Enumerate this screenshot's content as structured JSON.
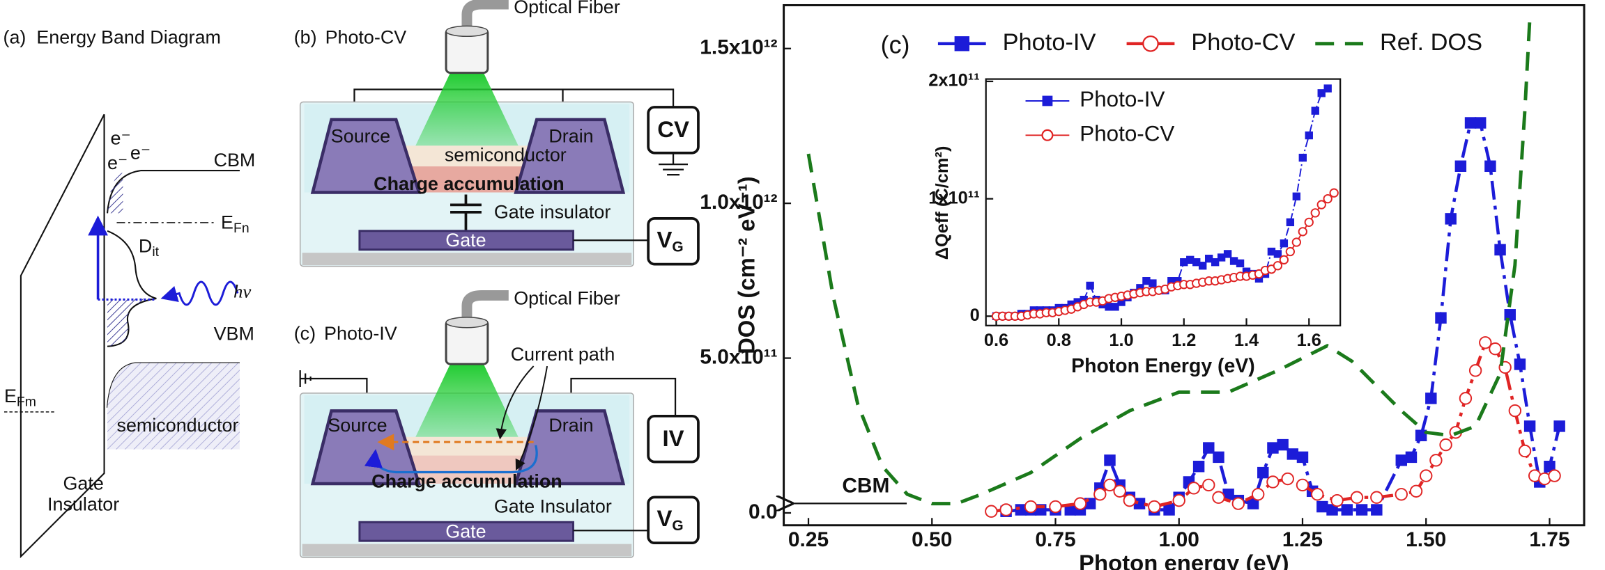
{
  "panel_a": {
    "label": "(a)",
    "title": "Energy Band Diagram",
    "electrons": [
      "e⁻",
      "e⁻",
      "e⁻"
    ],
    "cbm": "CBM",
    "efn": {
      "main": "E",
      "sub": "Fn"
    },
    "dit": {
      "main": "D",
      "sub": "it"
    },
    "photon": "hν",
    "vbm": "VBM",
    "efm": {
      "main": "E",
      "sub": "Fm"
    },
    "semiconductor": "semiconductor",
    "insulator": [
      "Gate",
      "Insulator"
    ]
  },
  "panel_b": {
    "label": "(b)",
    "title": "Photo-CV",
    "fiber": "Optical Fiber",
    "source": "Source",
    "drain": "Drain",
    "semiconductor": "semiconductor",
    "accumulation": "Charge accumulation",
    "insulator": "Gate insulator",
    "gate": "Gate",
    "meter": "CV",
    "vg": {
      "main": "V",
      "sub": "G"
    }
  },
  "panel_c": {
    "label": "(c)",
    "title": "Photo-IV",
    "fiber": "Optical Fiber",
    "current_path": "Current path",
    "source": "Source",
    "drain": "Drain",
    "accumulation": "Charge accumulation",
    "insulator": "Gate Insulator",
    "gate": "Gate",
    "meter": "IV",
    "vg": {
      "main": "V",
      "sub": "G"
    }
  },
  "chart_data": [
    {
      "type": "line",
      "xlabel": "Photon energy (eV)",
      "ylabel": "DOS (cm⁻² eV⁻¹)",
      "annotations": [
        "(c)",
        "CBM"
      ],
      "legend": "top",
      "xlim": [
        0.2,
        1.82
      ],
      "ylim": [
        -40000000000.0,
        1640000000000.0
      ],
      "xticks": [
        0.25,
        {
          "value": 0.5,
          "label": "0.50"
        },
        0.75,
        {
          "value": 1,
          "label": "1.00"
        },
        1.25,
        {
          "value": 1.5,
          "label": "1.50"
        },
        1.75
      ],
      "yticks": [
        {
          "value": 0,
          "label": "0.0"
        },
        {
          "value": 500000000000.0,
          "label": "5.0x10¹¹"
        },
        {
          "value": 1000000000000.0,
          "label": "1.0x10¹²"
        },
        {
          "value": 1500000000000.0,
          "label": "1.5x10¹²"
        }
      ],
      "series": [
        {
          "name": "Photo-IV",
          "color": "#1c1cd8",
          "marker": "square",
          "linestyle": "dashdot",
          "x": [
            0.65,
            0.68,
            0.7,
            0.72,
            0.75,
            0.78,
            0.8,
            0.82,
            0.84,
            0.86,
            0.88,
            0.9,
            0.92,
            0.95,
            0.98,
            1.0,
            1.02,
            1.04,
            1.06,
            1.08,
            1.1,
            1.12,
            1.15,
            1.17,
            1.19,
            1.21,
            1.23,
            1.25,
            1.27,
            1.29,
            1.31,
            1.34,
            1.37,
            1.4,
            1.45,
            1.47,
            1.49,
            1.51,
            1.53,
            1.55,
            1.57,
            1.59,
            1.61,
            1.63,
            1.65,
            1.67,
            1.69,
            1.71,
            1.73,
            1.75,
            1.77
          ],
          "values": [
            5000000000.0,
            10000000000.0,
            10000000000.0,
            10000000000.0,
            10000000000.0,
            10000000000.0,
            10000000000.0,
            30000000000.0,
            80000000000.0,
            170000000000.0,
            90000000000.0,
            50000000000.0,
            30000000000.0,
            10000000000.0,
            10000000000.0,
            50000000000.0,
            100000000000.0,
            150000000000.0,
            210000000000.0,
            180000000000.0,
            60000000000.0,
            40000000000.0,
            30000000000.0,
            130000000000.0,
            210000000000.0,
            220000000000.0,
            190000000000.0,
            180000000000.0,
            70000000000.0,
            20000000000.0,
            10000000000.0,
            10000000000.0,
            10000000000.0,
            10000000000.0,
            170000000000.0,
            180000000000.0,
            250000000000.0,
            370000000000.0,
            630000000000.0,
            950000000000.0,
            1120000000000.0,
            1260000000000.0,
            1260000000000.0,
            1120000000000.0,
            850000000000.0,
            640000000000.0,
            480000000000.0,
            280000000000.0,
            100000000000.0,
            150000000000.0,
            280000000000.0
          ]
        },
        {
          "name": "Photo-CV",
          "color": "#e02424",
          "marker": "circle",
          "linestyle": "dashdot",
          "x": [
            0.62,
            0.65,
            0.7,
            0.75,
            0.8,
            0.84,
            0.86,
            0.88,
            0.9,
            0.95,
            1.0,
            1.03,
            1.06,
            1.08,
            1.12,
            1.16,
            1.19,
            1.22,
            1.25,
            1.28,
            1.32,
            1.36,
            1.4,
            1.45,
            1.48,
            1.5,
            1.52,
            1.54,
            1.56,
            1.58,
            1.6,
            1.62,
            1.64,
            1.66,
            1.68,
            1.7,
            1.72,
            1.74,
            1.76
          ],
          "values": [
            5000000000.0,
            10000000000.0,
            20000000000.0,
            20000000000.0,
            30000000000.0,
            60000000000.0,
            90000000000.0,
            70000000000.0,
            40000000000.0,
            20000000000.0,
            40000000000.0,
            80000000000.0,
            90000000000.0,
            50000000000.0,
            30000000000.0,
            60000000000.0,
            100000000000.0,
            110000000000.0,
            90000000000.0,
            60000000000.0,
            40000000000.0,
            50000000000.0,
            50000000000.0,
            60000000000.0,
            70000000000.0,
            120000000000.0,
            170000000000.0,
            220000000000.0,
            260000000000.0,
            370000000000.0,
            460000000000.0,
            550000000000.0,
            530000000000.0,
            470000000000.0,
            330000000000.0,
            200000000000.0,
            120000000000.0,
            110000000000.0,
            120000000000.0
          ]
        },
        {
          "name": "Ref. DOS",
          "color": "#1b7a1b",
          "marker": "none",
          "linestyle": "dashed",
          "x": [
            0.25,
            0.3,
            0.35,
            0.4,
            0.45,
            0.5,
            0.55,
            0.6,
            0.7,
            0.8,
            0.9,
            1.0,
            1.1,
            1.2,
            1.3,
            1.35,
            1.45,
            1.5,
            1.55,
            1.6,
            1.65,
            1.68,
            1.7,
            1.71
          ],
          "values": [
            1160000000000.0,
            700000000000.0,
            350000000000.0,
            150000000000.0,
            60000000000.0,
            30000000000.0,
            30000000000.0,
            60000000000.0,
            130000000000.0,
            240000000000.0,
            330000000000.0,
            390000000000.0,
            390000000000.0,
            460000000000.0,
            540000000000.0,
            490000000000.0,
            330000000000.0,
            260000000000.0,
            250000000000.0,
            280000000000.0,
            450000000000.0,
            800000000000.0,
            1300000000000.0,
            1600000000000.0
          ]
        }
      ]
    },
    {
      "type": "line",
      "xlabel": "Photon Energy (eV)",
      "ylabel": "ΔQeff (C/cm²)",
      "legend": "upper-left",
      "xlim": [
        0.567,
        1.7
      ],
      "ylim": [
        -8000000000.0,
        202000000000.0
      ],
      "xticks": [
        0.6,
        0.8,
        {
          "value": 1,
          "label": "1.0"
        },
        1.2,
        1.4,
        1.6
      ],
      "yticks": [
        0,
        {
          "value": 100000000000.0,
          "label": "1x10¹¹"
        },
        {
          "value": 200000000000.0,
          "label": "2x10¹¹"
        }
      ],
      "series": [
        {
          "name": "Photo-IV",
          "color": "#1c1cd8",
          "marker": "square",
          "linestyle": "dashdot",
          "x": [
            0.6,
            0.62,
            0.64,
            0.66,
            0.68,
            0.7,
            0.72,
            0.74,
            0.76,
            0.78,
            0.8,
            0.82,
            0.84,
            0.86,
            0.88,
            0.9,
            0.92,
            0.94,
            0.96,
            0.98,
            1.0,
            1.02,
            1.04,
            1.06,
            1.08,
            1.1,
            1.12,
            1.14,
            1.16,
            1.18,
            1.2,
            1.22,
            1.24,
            1.26,
            1.28,
            1.3,
            1.32,
            1.34,
            1.36,
            1.38,
            1.4,
            1.42,
            1.44,
            1.46,
            1.48,
            1.5,
            1.52,
            1.54,
            1.56,
            1.58,
            1.6,
            1.62,
            1.64,
            1.66
          ],
          "values": [
            0,
            0,
            0,
            0,
            2000000000.0,
            2000000000.0,
            5000000000.0,
            5000000000.0,
            5000000000.0,
            5000000000.0,
            7000000000.0,
            7000000000.0,
            10000000000.0,
            12000000000.0,
            14000000000.0,
            26000000000.0,
            14000000000.0,
            10000000000.0,
            8000000000.0,
            8000000000.0,
            12000000000.0,
            16000000000.0,
            20000000000.0,
            24000000000.0,
            30000000000.0,
            28000000000.0,
            22000000000.0,
            22000000000.0,
            30000000000.0,
            30000000000.0,
            46000000000.0,
            48000000000.0,
            46000000000.0,
            43000000000.0,
            49000000000.0,
            46000000000.0,
            50000000000.0,
            53000000000.0,
            47000000000.0,
            45000000000.0,
            38000000000.0,
            36000000000.0,
            32000000000.0,
            36000000000.0,
            55000000000.0,
            53000000000.0,
            62000000000.0,
            80000000000.0,
            102000000000.0,
            135000000000.0,
            154000000000.0,
            175000000000.0,
            190000000000.0,
            194000000000.0
          ]
        },
        {
          "name": "Photo-CV",
          "color": "#e02424",
          "marker": "circle",
          "linestyle": "solid",
          "x": [
            0.6,
            0.62,
            0.64,
            0.66,
            0.68,
            0.7,
            0.72,
            0.74,
            0.76,
            0.78,
            0.8,
            0.82,
            0.84,
            0.86,
            0.88,
            0.9,
            0.92,
            0.94,
            0.96,
            0.98,
            1.0,
            1.02,
            1.04,
            1.06,
            1.08,
            1.1,
            1.12,
            1.14,
            1.16,
            1.18,
            1.2,
            1.22,
            1.24,
            1.26,
            1.28,
            1.3,
            1.32,
            1.34,
            1.36,
            1.38,
            1.4,
            1.42,
            1.44,
            1.46,
            1.48,
            1.5,
            1.52,
            1.54,
            1.56,
            1.58,
            1.6,
            1.62,
            1.64,
            1.66,
            1.68
          ],
          "values": [
            0,
            0,
            0,
            0,
            0,
            1000000000.0,
            2000000000.0,
            2000000000.0,
            3000000000.0,
            3000000000.0,
            4000000000.0,
            5000000000.0,
            6000000000.0,
            8000000000.0,
            10000000000.0,
            12000000000.0,
            12000000000.0,
            13000000000.0,
            15000000000.0,
            16000000000.0,
            17000000000.0,
            18000000000.0,
            19000000000.0,
            20000000000.0,
            21000000000.0,
            21000000000.0,
            22000000000.0,
            23000000000.0,
            25000000000.0,
            26000000000.0,
            27000000000.0,
            27000000000.0,
            28000000000.0,
            29000000000.0,
            30000000000.0,
            30000000000.0,
            31000000000.0,
            32000000000.0,
            33000000000.0,
            34000000000.0,
            34000000000.0,
            35000000000.0,
            36000000000.0,
            39000000000.0,
            40000000000.0,
            43000000000.0,
            48000000000.0,
            55000000000.0,
            63000000000.0,
            72000000000.0,
            80000000000.0,
            88000000000.0,
            95000000000.0,
            100000000000.0,
            105000000000.0
          ]
        }
      ]
    }
  ]
}
